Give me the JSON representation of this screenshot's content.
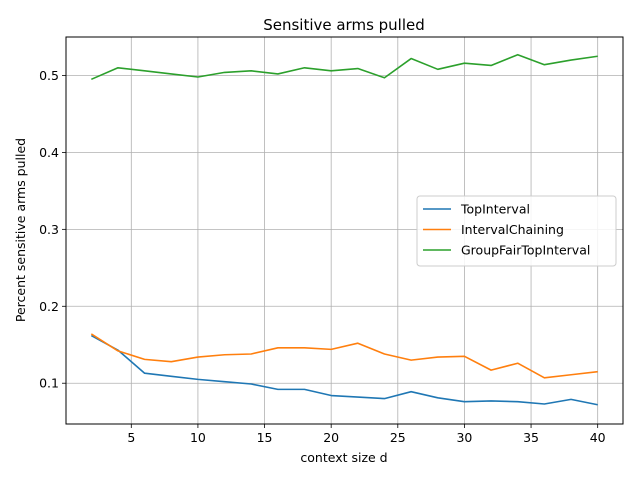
{
  "chart_data": {
    "type": "line",
    "title": "Sensitive arms pulled",
    "xlabel": "context size d",
    "ylabel": "Percent sensitive arms pulled",
    "xlim": [
      0.1,
      41.9
    ],
    "ylim": [
      0.047,
      0.55
    ],
    "xticks": [
      5,
      10,
      15,
      20,
      25,
      30,
      35,
      40
    ],
    "yticks": [
      0.1,
      0.2,
      0.3,
      0.4,
      0.5
    ],
    "xtick_labels": [
      "5",
      "10",
      "15",
      "20",
      "25",
      "30",
      "35",
      "40"
    ],
    "ytick_labels": [
      "0.1",
      "0.2",
      "0.3",
      "0.4",
      "0.5"
    ],
    "grid": true,
    "legend_position": "center-right",
    "x": [
      2,
      4,
      6,
      8,
      10,
      12,
      14,
      16,
      18,
      20,
      22,
      24,
      26,
      28,
      30,
      32,
      34,
      36,
      38,
      40
    ],
    "series": [
      {
        "name": "TopInterval",
        "color": "#1f77b4",
        "values": [
          0.162,
          0.143,
          0.113,
          0.109,
          0.105,
          0.102,
          0.099,
          0.092,
          0.092,
          0.084,
          0.082,
          0.08,
          0.089,
          0.081,
          0.076,
          0.077,
          0.076,
          0.073,
          0.079,
          0.072
        ]
      },
      {
        "name": "IntervalChaining",
        "color": "#ff7f0e",
        "values": [
          0.164,
          0.142,
          0.131,
          0.128,
          0.134,
          0.137,
          0.138,
          0.146,
          0.146,
          0.144,
          0.152,
          0.138,
          0.13,
          0.134,
          0.135,
          0.117,
          0.126,
          0.107,
          0.111,
          0.115
        ]
      },
      {
        "name": "GroupFairTopInterval",
        "color": "#2ca02c",
        "values": [
          0.495,
          0.51,
          0.506,
          0.502,
          0.498,
          0.504,
          0.506,
          0.502,
          0.51,
          0.506,
          0.509,
          0.497,
          0.522,
          0.508,
          0.516,
          0.513,
          0.527,
          0.514,
          0.52,
          0.525
        ]
      }
    ]
  }
}
